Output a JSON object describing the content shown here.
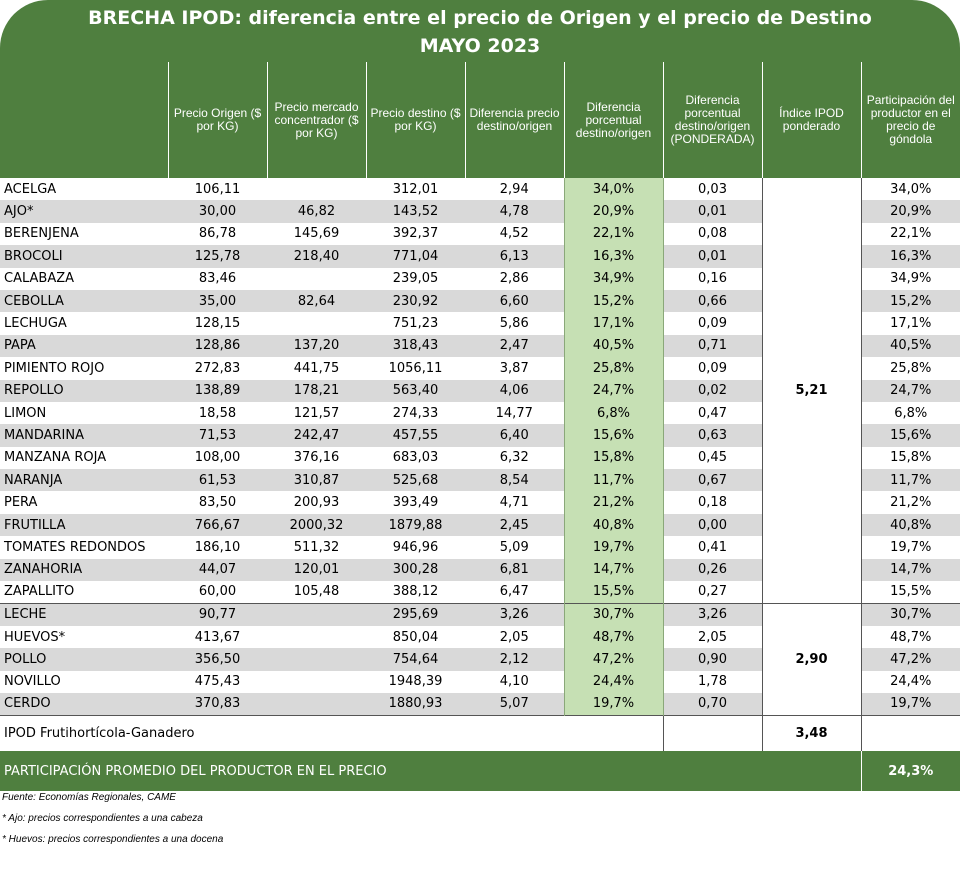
{
  "title": {
    "line1": "BRECHA IPOD: diferencia entre el precio de Origen y el precio de Destino",
    "line2": "MAYO 2023"
  },
  "headers": [
    "",
    "Precio Origen ($ por KG)",
    "Precio mercado concentrador ($ por KG)",
    "Precio destino ($ por KG)",
    "Diferencia precio destino/origen",
    "Diferencia porcentual destino/origen",
    "Diferencia porcentual destino/origen (PONDERADA)",
    "Índice IPOD ponderado",
    "Participación del productor en el precio de góndola"
  ],
  "group_fruti": {
    "ipod": "5,21",
    "rows": [
      {
        "name": "ACELGA",
        "origen": "106,11",
        "mercado": "",
        "destino": "312,01",
        "dif": "2,94",
        "pct": "34,0%",
        "pond": "0,03",
        "part": "34,0%"
      },
      {
        "name": "AJO*",
        "origen": "30,00",
        "mercado": "46,82",
        "destino": "143,52",
        "dif": "4,78",
        "pct": "20,9%",
        "pond": "0,01",
        "part": "20,9%"
      },
      {
        "name": "BERENJENA",
        "origen": "86,78",
        "mercado": "145,69",
        "destino": "392,37",
        "dif": "4,52",
        "pct": "22,1%",
        "pond": "0,08",
        "part": "22,1%"
      },
      {
        "name": "BROCOLI",
        "origen": "125,78",
        "mercado": "218,40",
        "destino": "771,04",
        "dif": "6,13",
        "pct": "16,3%",
        "pond": "0,01",
        "part": "16,3%"
      },
      {
        "name": "CALABAZA",
        "origen": "83,46",
        "mercado": "",
        "destino": "239,05",
        "dif": "2,86",
        "pct": "34,9%",
        "pond": "0,16",
        "part": "34,9%"
      },
      {
        "name": "CEBOLLA",
        "origen": "35,00",
        "mercado": "82,64",
        "destino": "230,92",
        "dif": "6,60",
        "pct": "15,2%",
        "pond": "0,66",
        "part": "15,2%"
      },
      {
        "name": "LECHUGA",
        "origen": "128,15",
        "mercado": "",
        "destino": "751,23",
        "dif": "5,86",
        "pct": "17,1%",
        "pond": "0,09",
        "part": "17,1%"
      },
      {
        "name": "PAPA",
        "origen": "128,86",
        "mercado": "137,20",
        "destino": "318,43",
        "dif": "2,47",
        "pct": "40,5%",
        "pond": "0,71",
        "part": "40,5%"
      },
      {
        "name": "PIMIENTO ROJO",
        "origen": "272,83",
        "mercado": "441,75",
        "destino": "1056,11",
        "dif": "3,87",
        "pct": "25,8%",
        "pond": "0,09",
        "part": "25,8%"
      },
      {
        "name": "REPOLLO",
        "origen": "138,89",
        "mercado": "178,21",
        "destino": "563,40",
        "dif": "4,06",
        "pct": "24,7%",
        "pond": "0,02",
        "part": "24,7%"
      },
      {
        "name": "LIMON",
        "origen": "18,58",
        "mercado": "121,57",
        "destino": "274,33",
        "dif": "14,77",
        "pct": "6,8%",
        "pond": "0,47",
        "part": "6,8%"
      },
      {
        "name": "MANDARINA",
        "origen": "71,53",
        "mercado": "242,47",
        "destino": "457,55",
        "dif": "6,40",
        "pct": "15,6%",
        "pond": "0,63",
        "part": "15,6%"
      },
      {
        "name": "MANZANA ROJA",
        "origen": "108,00",
        "mercado": "376,16",
        "destino": "683,03",
        "dif": "6,32",
        "pct": "15,8%",
        "pond": "0,45",
        "part": "15,8%"
      },
      {
        "name": "NARANJA",
        "origen": "61,53",
        "mercado": "310,87",
        "destino": "525,68",
        "dif": "8,54",
        "pct": "11,7%",
        "pond": "0,67",
        "part": "11,7%"
      },
      {
        "name": "PERA",
        "origen": "83,50",
        "mercado": "200,93",
        "destino": "393,49",
        "dif": "4,71",
        "pct": "21,2%",
        "pond": "0,18",
        "part": "21,2%"
      },
      {
        "name": "FRUTILLA",
        "origen": "766,67",
        "mercado": "2000,32",
        "destino": "1879,88",
        "dif": "2,45",
        "pct": "40,8%",
        "pond": "0,00",
        "part": "40,8%"
      },
      {
        "name": "TOMATES REDONDOS",
        "origen": "186,10",
        "mercado": "511,32",
        "destino": "946,96",
        "dif": "5,09",
        "pct": "19,7%",
        "pond": "0,41",
        "part": "19,7%"
      },
      {
        "name": "ZANAHORIA",
        "origen": "44,07",
        "mercado": "120,01",
        "destino": "300,28",
        "dif": "6,81",
        "pct": "14,7%",
        "pond": "0,26",
        "part": "14,7%"
      },
      {
        "name": "ZAPALLITO",
        "origen": "60,00",
        "mercado": "105,48",
        "destino": "388,12",
        "dif": "6,47",
        "pct": "15,5%",
        "pond": "0,27",
        "part": "15,5%"
      }
    ]
  },
  "group_ganadero": {
    "ipod": "2,90",
    "rows": [
      {
        "name": "LECHE",
        "origen": "90,77",
        "mercado": "",
        "destino": "295,69",
        "dif": "3,26",
        "pct": "30,7%",
        "pond": "3,26",
        "part": "30,7%"
      },
      {
        "name": "HUEVOS*",
        "origen": "413,67",
        "mercado": "",
        "destino": "850,04",
        "dif": "2,05",
        "pct": "48,7%",
        "pond": "2,05",
        "part": "48,7%"
      },
      {
        "name": "POLLO",
        "origen": "356,50",
        "mercado": "",
        "destino": "754,64",
        "dif": "2,12",
        "pct": "47,2%",
        "pond": "0,90",
        "part": "47,2%"
      },
      {
        "name": "NOVILLO",
        "origen": "475,43",
        "mercado": "",
        "destino": "1948,39",
        "dif": "4,10",
        "pct": "24,4%",
        "pond": "1,78",
        "part": "24,4%"
      },
      {
        "name": "CERDO",
        "origen": "370,83",
        "mercado": "",
        "destino": "1880,93",
        "dif": "5,07",
        "pct": "19,7%",
        "pond": "0,70",
        "part": "19,7%"
      }
    ]
  },
  "total": {
    "label": "IPOD Frutihortícola-Ganadero",
    "value": "3,48"
  },
  "participacion": {
    "label": "PARTICIPACIÓN PROMEDIO DEL PRODUCTOR EN EL PRECIO",
    "value": "24,3%"
  },
  "notes": [
    "Fuente: Economías Regionales, CAME",
    "* Ajo: precios correspondientes a una cabeza",
    "* Huevos: precios correspondientes a una docena"
  ],
  "colors": {
    "header_green": "#4f7f3f",
    "pct_green": "#c6e0b4",
    "row_gray": "#d9d9d9"
  }
}
